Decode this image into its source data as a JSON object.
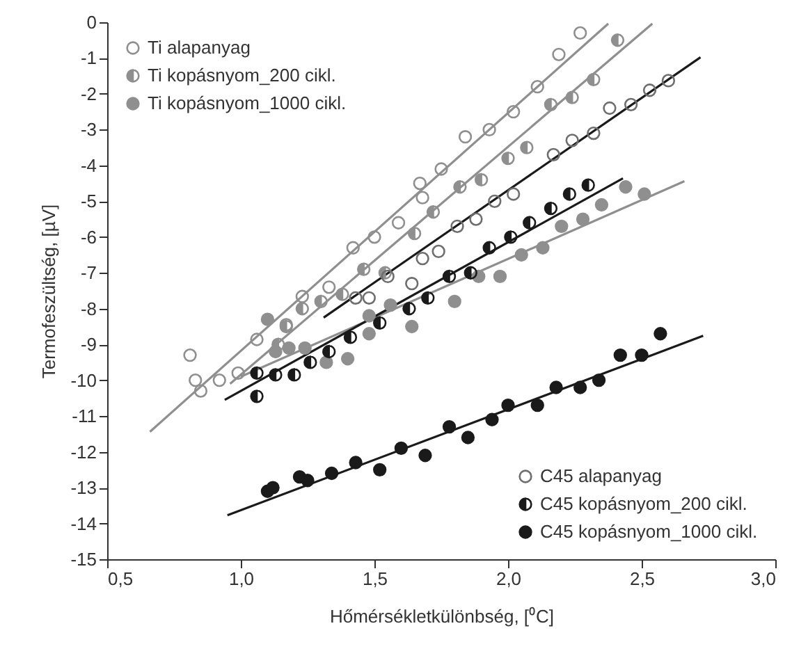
{
  "chart_data": {
    "type": "scatter",
    "xlabel": "Hőmérsékletkülönbség, [⁰C]",
    "ylabel": "Termofeszültség, [µV]",
    "xlim": [
      0.5,
      3.0
    ],
    "xticks": [
      {
        "value": 0.5,
        "label": "0,5"
      },
      {
        "value": 1.0,
        "label": "1,0"
      },
      {
        "value": 1.5,
        "label": "1,5"
      },
      {
        "value": 2.0,
        "label": "2,0"
      },
      {
        "value": 2.5,
        "label": "2,5"
      },
      {
        "value": 3.0,
        "label": "3,0"
      }
    ],
    "ylim": [
      -15,
      0
    ],
    "yticks": [
      -15,
      -14,
      -13,
      -12,
      -11,
      -10,
      -9,
      -8,
      -7,
      -6,
      -5,
      -4,
      -3,
      -2,
      -1,
      0
    ],
    "grid": false,
    "legend": [
      "top left",
      "bottom right"
    ],
    "series": [
      {
        "name": "Ti alapanyag",
        "color": "#8f8f8f",
        "marker": "circle-open",
        "x": [
          0.81,
          0.83,
          0.85,
          0.92,
          0.99,
          1.06,
          1.17,
          1.23,
          1.33,
          1.42,
          1.5,
          1.59,
          1.67,
          1.68,
          1.75,
          1.84,
          1.93,
          2.02,
          2.11,
          2.19,
          2.27
        ],
        "values": [
          -9.3,
          -10.0,
          -10.3,
          -10.0,
          -9.8,
          -8.86,
          -8.45,
          -7.66,
          -7.4,
          -6.3,
          -6.0,
          -5.6,
          -4.5,
          -4.9,
          -4.1,
          -3.2,
          -3.0,
          -2.5,
          -1.8,
          -0.9,
          -0.3
        ]
      },
      {
        "name": "Ti kopásnyom_200 cikl.",
        "color": "#8f8f8f",
        "marker": "half-circle",
        "x": [
          1.14,
          1.17,
          1.23,
          1.3,
          1.38,
          1.46,
          1.54,
          1.65,
          1.72,
          1.82,
          1.9,
          2.0,
          2.07,
          2.16,
          2.24,
          2.32,
          2.41
        ],
        "values": [
          -9.0,
          -8.5,
          -8.0,
          -7.8,
          -7.6,
          -6.9,
          -7.0,
          -5.9,
          -5.3,
          -4.6,
          -4.4,
          -3.8,
          -3.5,
          -2.3,
          -2.1,
          -1.6,
          -0.5
        ]
      },
      {
        "name": "Ti kopásnyom_1000 cikl.",
        "color": "#8f8f8f",
        "marker": "circle",
        "x": [
          1.1,
          1.13,
          1.18,
          1.24,
          1.32,
          1.4,
          1.48,
          1.48,
          1.56,
          1.64,
          1.71,
          1.8,
          1.89,
          1.97,
          2.05,
          2.13,
          2.2,
          2.28,
          2.35,
          2.44,
          2.51
        ],
        "values": [
          -8.3,
          -9.2,
          -9.1,
          -9.1,
          -9.5,
          -9.4,
          -8.7,
          -8.2,
          -7.9,
          -8.5,
          null,
          -7.8,
          -7.1,
          -7.1,
          -6.5,
          -6.3,
          -5.7,
          -5.5,
          -5.1,
          -4.6,
          -4.8
        ]
      },
      {
        "name": "C45 alapanyag",
        "color": "#6e6e6e",
        "marker": "circle-open",
        "x": [
          1.43,
          1.48,
          1.55,
          1.64,
          1.68,
          1.74,
          1.81,
          1.88,
          1.95,
          2.02,
          2.17,
          2.24,
          2.32,
          2.38,
          2.46,
          2.53,
          2.6
        ],
        "values": [
          -7.7,
          -7.7,
          -7.1,
          -7.3,
          -6.6,
          -6.4,
          -5.7,
          -5.5,
          -5.0,
          -4.8,
          -3.7,
          -3.3,
          -3.1,
          -2.4,
          -2.3,
          -1.9,
          -1.63
        ]
      },
      {
        "name": "C45 kopásnyom_200 cikl.",
        "color": "#1a1a1a",
        "marker": "half-circle",
        "x": [
          1.06,
          1.06,
          1.13,
          1.2,
          1.26,
          1.33,
          1.41,
          1.52,
          1.63,
          1.7,
          1.78,
          1.86,
          1.93,
          2.01,
          2.08,
          2.16,
          2.23,
          2.3
        ],
        "values": [
          -10.45,
          -9.8,
          -9.85,
          -9.85,
          -9.5,
          -9.2,
          -8.8,
          -8.4,
          -8.0,
          -7.7,
          -7.1,
          -7.0,
          -6.3,
          -6.0,
          -5.6,
          -5.2,
          -4.8,
          -4.55
        ]
      },
      {
        "name": "C45 kopásnyom_1000 cikl.",
        "color": "#1a1a1a",
        "marker": "circle",
        "x": [
          1.1,
          1.12,
          1.22,
          1.25,
          1.34,
          1.43,
          1.52,
          1.6,
          1.69,
          1.78,
          1.85,
          1.94,
          2.0,
          2.11,
          2.18,
          2.27,
          2.34,
          2.42,
          2.5,
          2.57
        ],
        "values": [
          -13.1,
          -13.0,
          -12.7,
          -12.8,
          -12.6,
          -12.3,
          -12.5,
          -11.9,
          -12.1,
          -11.3,
          -11.6,
          -11.1,
          -10.7,
          -10.7,
          -10.2,
          -10.2,
          -10.0,
          -9.3,
          -9.3,
          -8.7
        ]
      },
      {
        "type": "line",
        "color": "#8f8f8f",
        "x": [
          0.66,
          2.375
        ],
        "values": [
          -11.44,
          -0.04
        ]
      },
      {
        "type": "line",
        "color": "#8f8f8f",
        "x": [
          0.96,
          2.54
        ],
        "values": [
          -10.1,
          -0.04
        ]
      },
      {
        "type": "line",
        "color": "#8f8f8f",
        "x": [
          1.0,
          2.66
        ],
        "values": [
          -9.9,
          -4.44
        ]
      },
      {
        "type": "line",
        "color": "#1a1a1a",
        "x": [
          1.31,
          2.72
        ],
        "values": [
          -8.25,
          -0.98
        ]
      },
      {
        "type": "line",
        "color": "#1a1a1a",
        "x": [
          0.94,
          2.43
        ],
        "values": [
          -10.55,
          -4.36
        ]
      },
      {
        "type": "line",
        "color": "#1a1a1a",
        "x": [
          0.95,
          2.73
        ],
        "values": [
          -13.77,
          -8.76
        ]
      }
    ]
  }
}
